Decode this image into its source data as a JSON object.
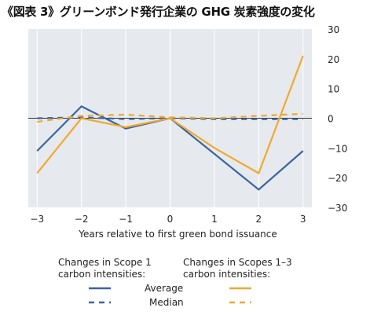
{
  "figure_title": "《図表 3》グリーンボンド発行企業の GHG 炭素強度の変化",
  "chart_data": {
    "type": "line",
    "x": [
      -3,
      -2,
      -1,
      0,
      1,
      2,
      3
    ],
    "xlabel": "Years relative to first green bond issuance",
    "ylabel": "",
    "ylim": [
      -30,
      30
    ],
    "yticks": [
      30,
      20,
      10,
      0,
      -10,
      -20,
      -30
    ],
    "xticks": [
      -3,
      -2,
      -1,
      0,
      1,
      2,
      3
    ],
    "grid": "vertical",
    "zero_line": true,
    "series": [
      {
        "name": "Scope 1 Average",
        "color": "#3a64a0",
        "dash": "solid",
        "values": [
          -11,
          4,
          -3.5,
          0,
          -12,
          -24,
          -11
        ]
      },
      {
        "name": "Scope 1 Median",
        "color": "#3a64a0",
        "dash": "dashed",
        "values": [
          0,
          0.3,
          -0.3,
          0,
          -0.3,
          -0.3,
          -0.3
        ]
      },
      {
        "name": "Scopes 1-3 Average",
        "color": "#f0a830",
        "dash": "solid",
        "values": [
          -18.5,
          0,
          -3,
          0,
          -10,
          -18.5,
          21
        ]
      },
      {
        "name": "Scopes 1-3 Median",
        "color": "#f0a830",
        "dash": "dashed",
        "values": [
          -1.2,
          0.8,
          1.2,
          0.3,
          0,
          0.8,
          1.5
        ]
      }
    ],
    "legend": {
      "placement": "bottom",
      "group1_line1": "Changes in Scope 1",
      "group1_line2": "carbon intensities:",
      "group2_line1": "Changes in Scopes 1–3",
      "group2_line2": "carbon intensities:",
      "average_label": "Average",
      "median_label": "Median"
    },
    "colors": {
      "plot_bg": "#e6eaee",
      "grid": "#ffffff",
      "zero": "#333333",
      "scope1": "#3a64a0",
      "scope13": "#f0a830"
    }
  }
}
